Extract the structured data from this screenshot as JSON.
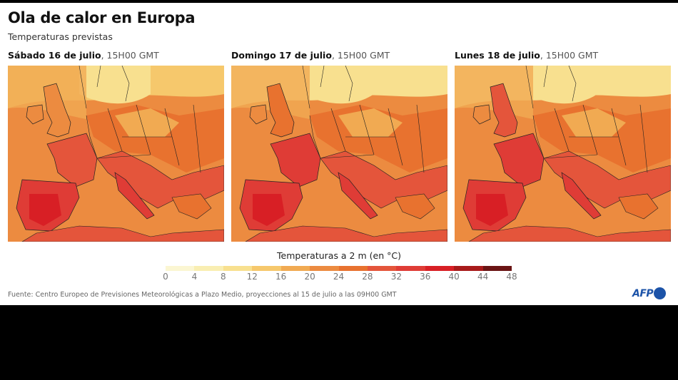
{
  "title": "Ola de calor en Europa",
  "subtitle": "Temperaturas previstas",
  "maps": [
    {
      "day": "Sábado 16 de julio",
      "time": ", 15H00 GMT"
    },
    {
      "day": "Domingo 17 de julio",
      "time": ", 15H00 GMT"
    },
    {
      "day": "Lunes 18 de julio",
      "time": ", 15H00 GMT"
    }
  ],
  "legend": {
    "title": "Temperaturas a 2 m (en °C)",
    "ticks": [
      "0",
      "4",
      "8",
      "12",
      "16",
      "20",
      "24",
      "28",
      "32",
      "36",
      "40",
      "44",
      "48"
    ],
    "colors": [
      "#fbf6d2",
      "#f9eeb2",
      "#f8e08f",
      "#f6c86c",
      "#f1aa52",
      "#ec8b40",
      "#e8722f",
      "#e4553b",
      "#df3c36",
      "#d81f25",
      "#a81a1a",
      "#6a1414"
    ]
  },
  "source": "Fuente: Centro Europeo de Previsiones Meteorológicas a Plazo Medio, proyecciones al 15 de julio a las 09H00 GMT",
  "logo": "AFP",
  "colors": {
    "brand": "#1c53a8"
  }
}
